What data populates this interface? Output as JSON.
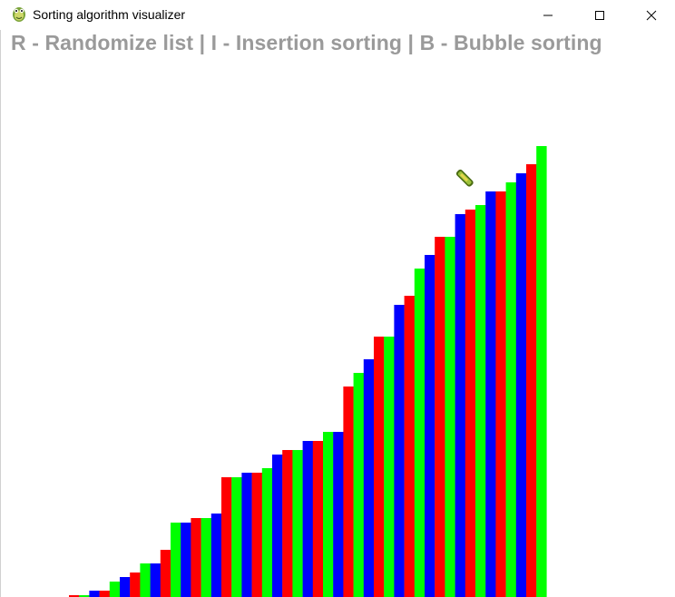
{
  "window": {
    "title": "Sorting algorithm visualizer",
    "app_icon": "python-snake-icon",
    "controls": [
      "minimize-icon",
      "maximize-icon",
      "close-icon"
    ]
  },
  "instructions": "R - Randomize list | I - Insertion sorting | B - Bubble sorting",
  "colors": {
    "background": "#ffffff",
    "instructions_text": "#9a9a9a",
    "bar_cycle": [
      "#ff0000",
      "#00ff00",
      "#0000ff"
    ]
  },
  "chart_data": {
    "type": "bar",
    "sorted": "ascending",
    "color_cycle_order": [
      "red",
      "green",
      "blue"
    ],
    "values": [
      2,
      2,
      7,
      7,
      17,
      22,
      27,
      37,
      37,
      52,
      82,
      82,
      87,
      87,
      92,
      132,
      132,
      137,
      137,
      142,
      157,
      162,
      162,
      172,
      172,
      182,
      182,
      232,
      247,
      262,
      287,
      287,
      322,
      332,
      362,
      377,
      397,
      397,
      422,
      427,
      432,
      447,
      447,
      457,
      467,
      477,
      497
    ]
  }
}
